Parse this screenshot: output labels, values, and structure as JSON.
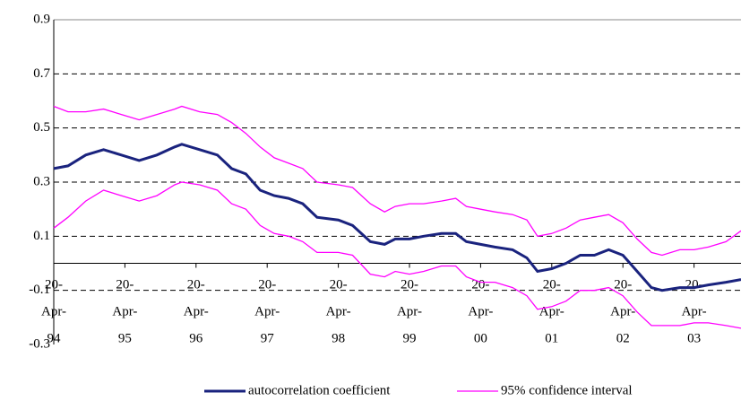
{
  "chart_data": {
    "type": "line",
    "x": [
      1994.3,
      1994.5,
      1994.75,
      1995.0,
      1995.25,
      1995.5,
      1995.75,
      1996.0,
      1996.1,
      1996.35,
      1996.6,
      1996.8,
      1997.0,
      1997.2,
      1997.4,
      1997.6,
      1997.8,
      1998.0,
      1998.3,
      1998.5,
      1998.75,
      1998.95,
      1999.1,
      1999.3,
      1999.5,
      1999.75,
      1999.95,
      2000.1,
      2000.3,
      2000.5,
      2000.75,
      2000.95,
      2001.1,
      2001.3,
      2001.5,
      2001.7,
      2001.9,
      2002.1,
      2002.3,
      2002.5,
      2002.7,
      2002.85,
      2003.1,
      2003.3,
      2003.5,
      2003.75,
      2003.96
    ],
    "series": [
      {
        "name": "autocorrelation coefficient",
        "color": "#1a237e",
        "width": 3,
        "values": [
          0.35,
          0.36,
          0.4,
          0.42,
          0.4,
          0.38,
          0.4,
          0.43,
          0.44,
          0.42,
          0.4,
          0.35,
          0.33,
          0.27,
          0.25,
          0.24,
          0.22,
          0.17,
          0.16,
          0.14,
          0.08,
          0.07,
          0.09,
          0.09,
          0.1,
          0.11,
          0.11,
          0.08,
          0.07,
          0.06,
          0.05,
          0.02,
          -0.03,
          -0.02,
          0.0,
          0.03,
          0.03,
          0.05,
          0.03,
          -0.03,
          -0.09,
          -0.1,
          -0.09,
          -0.09,
          -0.08,
          -0.07,
          -0.06
        ]
      },
      {
        "name": "95% confidence interval",
        "color": "#ff00ff",
        "width": 1.3,
        "values": [
          0.58,
          0.56,
          0.56,
          0.57,
          0.55,
          0.53,
          0.55,
          0.57,
          0.58,
          0.56,
          0.55,
          0.52,
          0.48,
          0.43,
          0.39,
          0.37,
          0.35,
          0.3,
          0.29,
          0.28,
          0.22,
          0.19,
          0.21,
          0.22,
          0.22,
          0.23,
          0.24,
          0.21,
          0.2,
          0.19,
          0.18,
          0.16,
          0.1,
          0.11,
          0.13,
          0.16,
          0.17,
          0.18,
          0.15,
          0.09,
          0.04,
          0.03,
          0.05,
          0.05,
          0.06,
          0.08,
          0.12
        ],
        "values_lower": [
          0.13,
          0.17,
          0.23,
          0.27,
          0.25,
          0.23,
          0.25,
          0.29,
          0.3,
          0.29,
          0.27,
          0.22,
          0.2,
          0.14,
          0.11,
          0.1,
          0.08,
          0.04,
          0.04,
          0.03,
          -0.04,
          -0.05,
          -0.03,
          -0.04,
          -0.03,
          -0.01,
          -0.01,
          -0.05,
          -0.07,
          -0.07,
          -0.09,
          -0.12,
          -0.17,
          -0.16,
          -0.14,
          -0.1,
          -0.1,
          -0.09,
          -0.12,
          -0.18,
          -0.23,
          -0.23,
          -0.23,
          -0.22,
          -0.22,
          -0.23,
          -0.24
        ]
      }
    ],
    "xlim": [
      1994.3,
      2003.96
    ],
    "xticks": [
      {
        "value": 1994.3,
        "label": "20-Apr-94"
      },
      {
        "value": 1995.3,
        "label": "20-Apr-95"
      },
      {
        "value": 1996.3,
        "label": "20-Apr-96"
      },
      {
        "value": 1997.3,
        "label": "20-Apr-97"
      },
      {
        "value": 1998.3,
        "label": "20-Apr-98"
      },
      {
        "value": 1999.3,
        "label": "20-Apr-99"
      },
      {
        "value": 2000.3,
        "label": "20-Apr-00"
      },
      {
        "value": 2001.3,
        "label": "20-Apr-01"
      },
      {
        "value": 2002.3,
        "label": "20-Apr-02"
      },
      {
        "value": 2003.3,
        "label": "20-Apr-03"
      }
    ],
    "ylim": [
      -0.3,
      0.9
    ],
    "yticks": [
      0.9,
      0.7,
      0.5,
      0.3,
      0.1,
      -0.1,
      -0.3
    ],
    "grid": true,
    "legend": "bottom"
  }
}
